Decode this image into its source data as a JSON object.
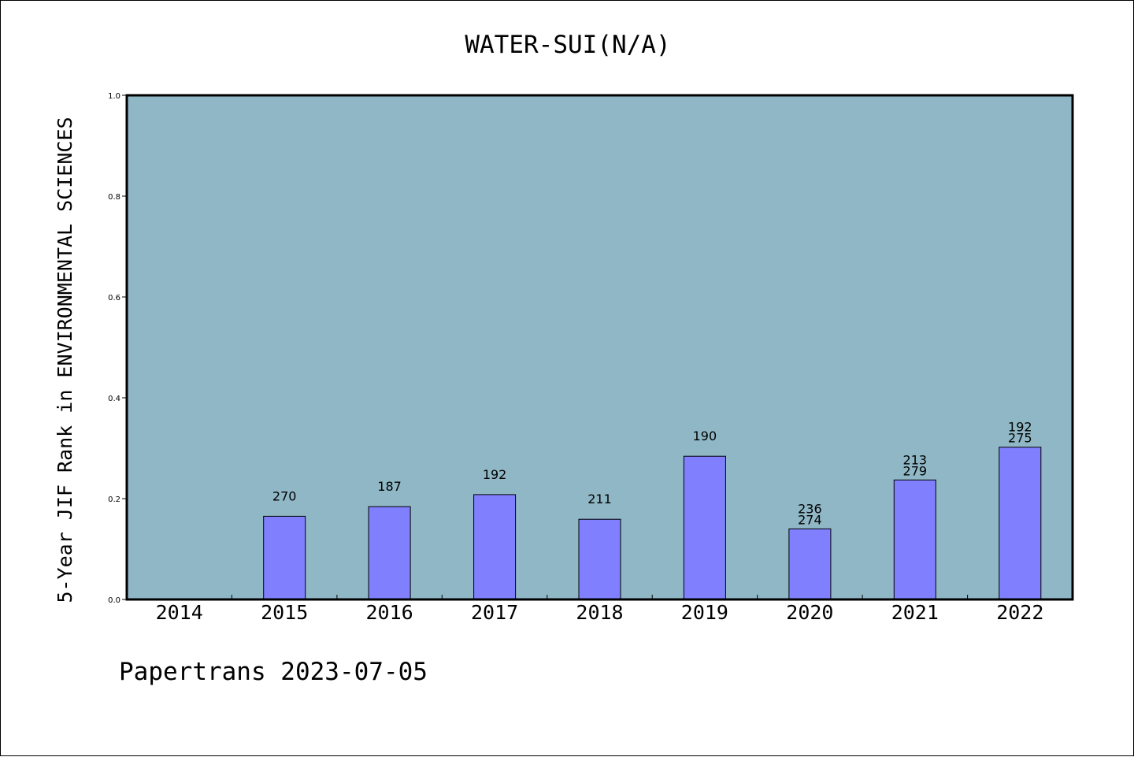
{
  "chart_data": {
    "type": "bar",
    "title": "WATER-SUI(N/A)",
    "ylabel": "5-Year JIF Rank in ENVIRONMENTAL SCIENCES",
    "xlabel": "",
    "categories": [
      "2014",
      "2015",
      "2016",
      "2017",
      "2018",
      "2019",
      "2020",
      "2021",
      "2022"
    ],
    "values": [
      null,
      0.165,
      0.184,
      0.208,
      0.159,
      0.284,
      0.14,
      0.237,
      0.302
    ],
    "bar_labels": [
      [],
      [
        "270"
      ],
      [
        "187"
      ],
      [
        "192"
      ],
      [
        "211"
      ],
      [
        "190"
      ],
      [
        "236",
        "274"
      ],
      [
        "213",
        "279"
      ],
      [
        "192",
        "275"
      ]
    ],
    "ylim": [
      0,
      1.0
    ],
    "yticks": [
      "0.0",
      "0.2",
      "0.4",
      "0.6",
      "0.8",
      "1.0"
    ],
    "grid": false,
    "colors": {
      "plot_background": "#8fb7c5",
      "bar_fill": "#8080ff",
      "bar_stroke": "#000000"
    }
  },
  "footer": {
    "text": "Papertrans 2023-07-05"
  }
}
